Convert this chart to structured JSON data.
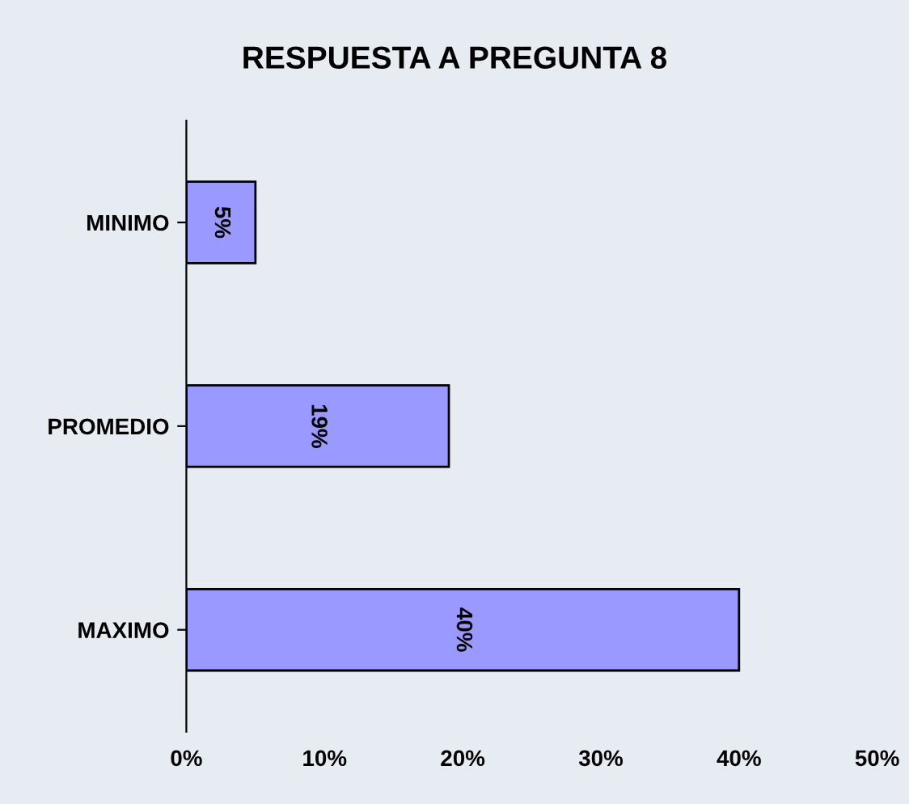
{
  "chart_data": {
    "type": "bar",
    "orientation": "horizontal",
    "title": "RESPUESTA A PREGUNTA 8",
    "categories": [
      "MINIMO",
      "PROMEDIO",
      "MAXIMO"
    ],
    "values": [
      5,
      19,
      40
    ],
    "color": "#9999ff",
    "value_labels": [
      "5%",
      "19%",
      "40%"
    ],
    "xlim": [
      0,
      50
    ],
    "xticks": [
      {
        "value": 0,
        "label": "0%"
      },
      {
        "value": 10,
        "label": "10%"
      },
      {
        "value": 20,
        "label": "20%"
      },
      {
        "value": 30,
        "label": "30%"
      },
      {
        "value": 40,
        "label": "40%"
      },
      {
        "value": 50,
        "label": "50%"
      }
    ],
    "grid": false,
    "legend": false
  }
}
